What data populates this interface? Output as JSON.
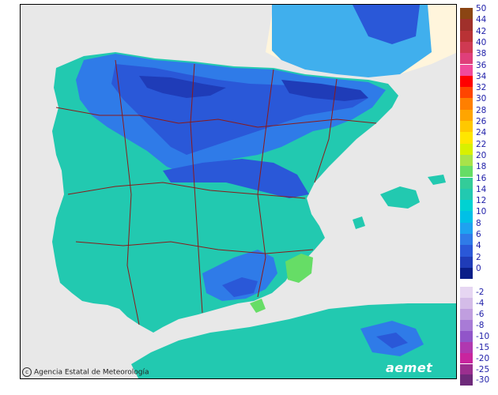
{
  "credit": "Agencia Estatal de Meteorología",
  "logo": "aemet",
  "legend": {
    "positive": [
      {
        "label": "50",
        "color": "#8b4513"
      },
      {
        "label": "44",
        "color": "#a0302b"
      },
      {
        "label": "42",
        "color": "#b93235"
      },
      {
        "label": "40",
        "color": "#cf3a52"
      },
      {
        "label": "38",
        "color": "#df3f7a"
      },
      {
        "label": "36",
        "color": "#f04a9a"
      },
      {
        "label": "34",
        "color": "#ff0000"
      },
      {
        "label": "32",
        "color": "#ff4500"
      },
      {
        "label": "30",
        "color": "#ff7f00"
      },
      {
        "label": "28",
        "color": "#ffa500"
      },
      {
        "label": "26",
        "color": "#ffc800"
      },
      {
        "label": "24",
        "color": "#ffe600"
      },
      {
        "label": "22",
        "color": "#d8f000"
      },
      {
        "label": "20",
        "color": "#a8e34a"
      },
      {
        "label": "18",
        "color": "#66dd66"
      },
      {
        "label": "16",
        "color": "#33cc99"
      },
      {
        "label": "14",
        "color": "#22c9b0"
      },
      {
        "label": "12",
        "color": "#00d2d2"
      },
      {
        "label": "10",
        "color": "#00c0e6"
      },
      {
        "label": "8",
        "color": "#1ea2f0"
      },
      {
        "label": "6",
        "color": "#2f7be8"
      },
      {
        "label": "4",
        "color": "#2a58d8"
      },
      {
        "label": "2",
        "color": "#1f3cb8"
      },
      {
        "label": "0",
        "color": "#0a1e88"
      }
    ],
    "negative": [
      {
        "label": "-2",
        "color": "#e6d6f2"
      },
      {
        "label": "-4",
        "color": "#d4bce8"
      },
      {
        "label": "-6",
        "color": "#c09edf"
      },
      {
        "label": "-8",
        "color": "#a87bd6"
      },
      {
        "label": "-10",
        "color": "#9155c9"
      },
      {
        "label": "-15",
        "color": "#b038b0"
      },
      {
        "label": "-20",
        "color": "#c8259e"
      },
      {
        "label": "-25",
        "color": "#9b2f8f"
      },
      {
        "label": "-30",
        "color": "#6e2a7a"
      }
    ]
  },
  "colors": {
    "sea": "#e8e8e8",
    "land_base": "#22c9b0",
    "cool": "#2f7be8",
    "cold": "#2a58d8",
    "coldest": "#1f3cb8",
    "warm": "#66dd66",
    "borders": "#8b1a1a",
    "france": "#fff5dc"
  }
}
